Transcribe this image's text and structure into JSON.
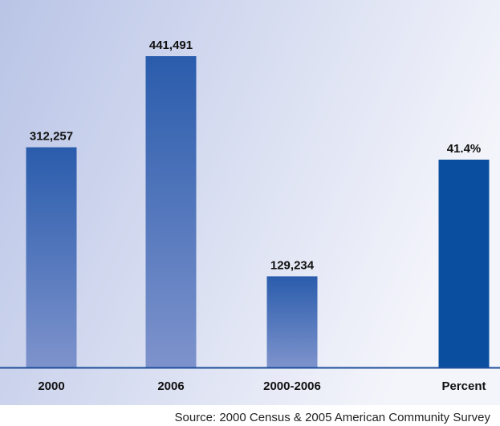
{
  "chart_data": {
    "type": "bar",
    "categories": [
      "2000",
      "2006",
      "2000-2006",
      "Percent"
    ],
    "values": [
      312257,
      441491,
      129234,
      41.4
    ],
    "value_labels": [
      "312,257",
      "441,491",
      "129,234",
      "41.4%"
    ],
    "title": "",
    "xlabel": "",
    "ylabel": "",
    "ylim": [
      0,
      441491
    ],
    "grid": false,
    "legend": "none",
    "note": "Source:  2000 Census & 2005 American Community Survey",
    "colors": {
      "bar_top": "#2a5cac",
      "bar_bottom": "#7e93cc",
      "percent_bar": "#0a4f9f",
      "baseline": "#1d4f9a",
      "plot_bg_left": "#b9c4e6",
      "plot_bg_right": "#f4f5fb"
    }
  }
}
